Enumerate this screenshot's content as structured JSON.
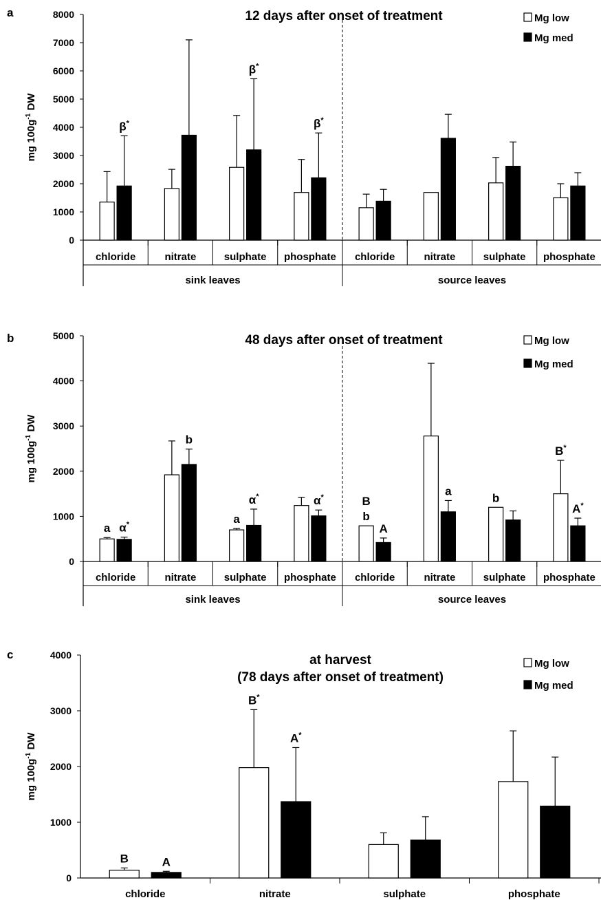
{
  "legend": {
    "low_label": "Mg low",
    "med_label": "Mg med"
  },
  "ylabel": {
    "main": "mg 100g",
    "sup": "-1",
    "tail": " DW"
  },
  "chart_data": [
    {
      "letter": "a",
      "type": "bar",
      "title": "12 days after onset of treatment",
      "ylim": [
        0,
        8000
      ],
      "yticks": [
        "0",
        "1000",
        "2000",
        "3000",
        "4000",
        "5000",
        "6000",
        "7000",
        "8000"
      ],
      "tick_values": [
        0,
        1000,
        2000,
        3000,
        4000,
        5000,
        6000,
        7000,
        8000
      ],
      "categories": [
        "chloride",
        "nitrate",
        "sulphate",
        "phosphate",
        "chloride",
        "nitrate",
        "sulphate",
        "phosphate"
      ],
      "groups": [
        "sink leaves",
        "source leaves"
      ],
      "series": [
        {
          "name": "Mg low",
          "values": [
            1350,
            1830,
            2580,
            1690,
            1150,
            1690,
            2030,
            1500
          ],
          "errors": [
            1080,
            680,
            1840,
            1170,
            480,
            0,
            900,
            500
          ]
        },
        {
          "name": "Mg med",
          "values": [
            1920,
            3720,
            3200,
            2210,
            1380,
            3610,
            2620,
            1920
          ],
          "errors": [
            1780,
            3380,
            2520,
            1590,
            420,
            850,
            860,
            470
          ]
        }
      ],
      "annotations": [
        {
          "cat": 0,
          "series": 1,
          "text": "β",
          "sup": "*"
        },
        {
          "cat": 2,
          "series": 1,
          "text": "β",
          "sup": "*"
        },
        {
          "cat": 3,
          "series": 1,
          "text": "β",
          "sup": "*"
        }
      ]
    },
    {
      "letter": "b",
      "type": "bar",
      "title": "48 days after onset of treatment",
      "ylim": [
        0,
        5000
      ],
      "yticks": [
        "0",
        "1000",
        "2000",
        "3000",
        "4000",
        "5000"
      ],
      "tick_values": [
        0,
        1000,
        2000,
        3000,
        4000,
        5000
      ],
      "categories": [
        "chloride",
        "nitrate",
        "sulphate",
        "phosphate",
        "chloride",
        "nitrate",
        "sulphate",
        "phosphate"
      ],
      "groups": [
        "sink leaves",
        "source leaves"
      ],
      "series": [
        {
          "name": "Mg low",
          "values": [
            500,
            1920,
            700,
            1240,
            790,
            2780,
            1200,
            1500
          ],
          "errors": [
            30,
            750,
            30,
            180,
            0,
            1610,
            0,
            740
          ]
        },
        {
          "name": "Mg med",
          "values": [
            490,
            2150,
            800,
            1010,
            420,
            1100,
            920,
            790
          ],
          "errors": [
            50,
            340,
            360,
            130,
            100,
            250,
            200,
            170
          ]
        }
      ],
      "annotations": [
        {
          "cat": 0,
          "series": 0,
          "text": "a",
          "sup": ""
        },
        {
          "cat": 0,
          "series": 1,
          "text": "α",
          "sup": "*"
        },
        {
          "cat": 1,
          "series": 1,
          "text": "b",
          "sup": ""
        },
        {
          "cat": 2,
          "series": 0,
          "text": "a",
          "sup": ""
        },
        {
          "cat": 2,
          "series": 1,
          "text": "α",
          "sup": "*"
        },
        {
          "cat": 3,
          "series": 1,
          "text": "α",
          "sup": "*"
        },
        {
          "cat": 4,
          "series": 0,
          "text": "b",
          "sup": ""
        },
        {
          "cat": 4,
          "series": 0,
          "text": "B",
          "sup": "",
          "stack": 1
        },
        {
          "cat": 4,
          "series": 1,
          "text": "A",
          "sup": ""
        },
        {
          "cat": 5,
          "series": 1,
          "text": "a",
          "sup": ""
        },
        {
          "cat": 6,
          "series": 0,
          "text": "b",
          "sup": ""
        },
        {
          "cat": 7,
          "series": 0,
          "text": "B",
          "sup": "*"
        },
        {
          "cat": 7,
          "series": 1,
          "text": "A",
          "sup": "*"
        }
      ]
    },
    {
      "letter": "c",
      "type": "bar",
      "title": "at harvest",
      "subtitle": "(78 days after onset of treatment)",
      "ylim": [
        0,
        4000
      ],
      "yticks": [
        "0",
        "1000",
        "2000",
        "3000",
        "4000"
      ],
      "tick_values": [
        0,
        1000,
        2000,
        3000,
        4000
      ],
      "categories": [
        "chloride",
        "nitrate",
        "sulphate",
        "phosphate"
      ],
      "series": [
        {
          "name": "Mg low",
          "values": [
            140,
            1980,
            600,
            1730
          ],
          "errors": [
            40,
            1040,
            210,
            910
          ]
        },
        {
          "name": "Mg med",
          "values": [
            100,
            1370,
            680,
            1290
          ],
          "errors": [
            20,
            970,
            420,
            880
          ]
        }
      ],
      "annotations": [
        {
          "cat": 0,
          "series": 0,
          "text": "B",
          "sup": ""
        },
        {
          "cat": 0,
          "series": 1,
          "text": "A",
          "sup": ""
        },
        {
          "cat": 1,
          "series": 0,
          "text": "B",
          "sup": "*"
        },
        {
          "cat": 1,
          "series": 1,
          "text": "A",
          "sup": "*"
        }
      ]
    }
  ]
}
